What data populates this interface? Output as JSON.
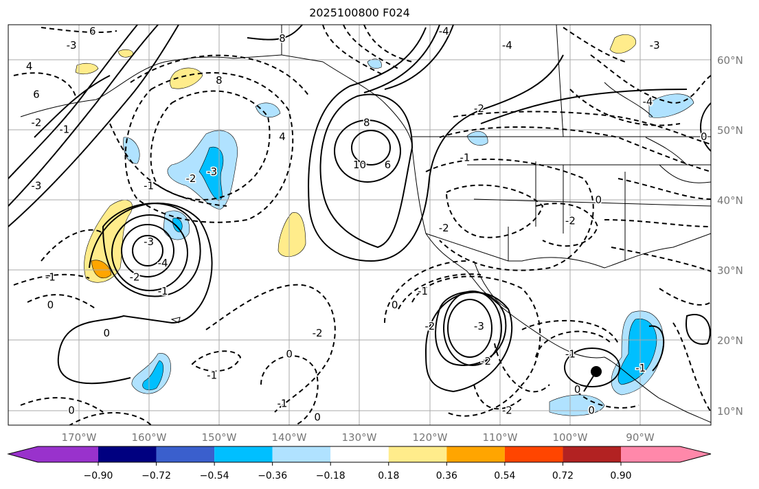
{
  "title": "2025100800 F024",
  "lon_ticks": [
    "170°W",
    "160°W",
    "150°W",
    "140°W",
    "130°W",
    "120°W",
    "110°W",
    "100°W",
    "90°W"
  ],
  "lat_ticks": [
    "60°N",
    "50°N",
    "40°N",
    "30°N",
    "20°N",
    "10°N"
  ],
  "colorbar": {
    "ticks": [
      "−0.90",
      "−0.72",
      "−0.54",
      "−0.36",
      "−0.18",
      "0.18",
      "0.36",
      "0.54",
      "0.72",
      "0.90"
    ],
    "colors": [
      "#9932CC",
      "#000080",
      "#3A5FCD",
      "#00BFFF",
      "#B0E2FF",
      "#FFFFFF",
      "#FFEC8B",
      "#FFA500",
      "#FF4500",
      "#B22222",
      "#FF88AA"
    ]
  },
  "contour_labels": [
    {
      "text": "6",
      "lon": -168,
      "lat": 64
    },
    {
      "text": "4",
      "lon": -177,
      "lat": 59
    },
    {
      "text": "6",
      "lon": -176,
      "lat": 55
    },
    {
      "text": "8",
      "lon": -141,
      "lat": 63
    },
    {
      "text": "8",
      "lon": -150,
      "lat": 57
    },
    {
      "text": "4",
      "lon": -141,
      "lat": 49
    },
    {
      "text": "-3",
      "lon": -151,
      "lat": 44
    },
    {
      "text": "-2",
      "lon": -154,
      "lat": 43
    },
    {
      "text": "-1",
      "lon": -160,
      "lat": 42
    },
    {
      "text": "8",
      "lon": -129,
      "lat": 51
    },
    {
      "text": "10",
      "lon": -130,
      "lat": 45
    },
    {
      "text": "6",
      "lon": -126,
      "lat": 45
    },
    {
      "text": "-3",
      "lon": -176,
      "lat": 42
    },
    {
      "text": "-3",
      "lon": -160,
      "lat": 34
    },
    {
      "text": "-4",
      "lon": -158,
      "lat": 31
    },
    {
      "text": "-2",
      "lon": -162,
      "lat": 29
    },
    {
      "text": "-1",
      "lon": -158,
      "lat": 27
    },
    {
      "text": "-1",
      "lon": -174,
      "lat": 29
    },
    {
      "text": "0",
      "lon": -174,
      "lat": 25
    },
    {
      "text": "0",
      "lon": -166,
      "lat": 21
    },
    {
      "text": "0",
      "lon": -140,
      "lat": 18
    },
    {
      "text": "-1",
      "lon": -151,
      "lat": 15
    },
    {
      "text": "-1",
      "lon": -141,
      "lat": 11
    },
    {
      "text": "0",
      "lon": -136,
      "lat": 9
    },
    {
      "text": "0",
      "lon": -171,
      "lat": 10
    },
    {
      "text": "-2",
      "lon": -136,
      "lat": 21
    },
    {
      "text": "-2",
      "lon": -120,
      "lat": 22
    },
    {
      "text": "-3",
      "lon": -113,
      "lat": 22
    },
    {
      "text": "-2",
      "lon": -112,
      "lat": 17
    },
    {
      "text": "0",
      "lon": -125,
      "lat": 25
    },
    {
      "text": "-1",
      "lon": -121,
      "lat": 27
    },
    {
      "text": "-2",
      "lon": -109,
      "lat": 10
    },
    {
      "text": "-1",
      "lon": -100,
      "lat": 18
    },
    {
      "text": "0",
      "lon": -99,
      "lat": 13
    },
    {
      "text": "0",
      "lon": -97,
      "lat": 10
    },
    {
      "text": "-2",
      "lon": -118,
      "lat": 36
    },
    {
      "text": "-2",
      "lon": -100,
      "lat": 37
    },
    {
      "text": "0",
      "lon": -96,
      "lat": 40
    },
    {
      "text": "-1",
      "lon": -115,
      "lat": 46
    },
    {
      "text": "-2",
      "lon": -113,
      "lat": 53
    },
    {
      "text": "-4",
      "lon": -109,
      "lat": 62
    },
    {
      "text": "-4",
      "lon": -118,
      "lat": 64
    },
    {
      "text": "-4",
      "lon": -89,
      "lat": 54
    },
    {
      "text": "-3",
      "lon": -88,
      "lat": 62
    },
    {
      "text": "0",
      "lon": -81,
      "lat": 49
    },
    {
      "text": "-1",
      "lon": -90,
      "lat": 16
    },
    {
      "text": "-3",
      "lon": -171,
      "lat": 62
    },
    {
      "text": "-2",
      "lon": -176,
      "lat": 51
    },
    {
      "text": "-1",
      "lon": -172,
      "lat": 50
    }
  ]
}
